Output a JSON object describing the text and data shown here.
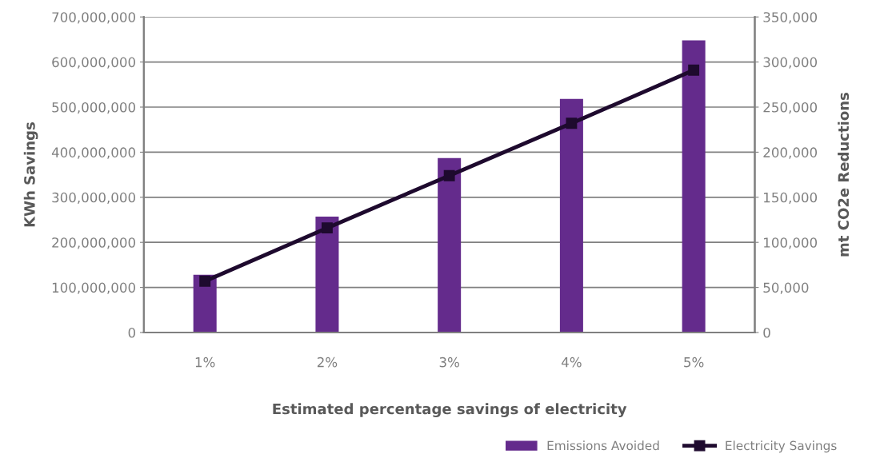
{
  "chart_data": {
    "type": "bar",
    "categories": [
      "1%",
      "2%",
      "3%",
      "4%",
      "5%"
    ],
    "xlabel": "Estimated percentage savings of electricity",
    "ylabel": "KWh Savings",
    "y2label": "mt CO2e Reductions",
    "series": [
      {
        "name": "Emissions Avoided",
        "color": "#642b8c",
        "values": [
          128000000,
          257000000,
          387000000,
          518000000,
          648000000
        ]
      },
      {
        "name": "Electricity Savings",
        "type": "line",
        "axis": "y2",
        "color": "#1e0a2e",
        "marker": "square",
        "values": [
          57000,
          116000,
          174000,
          232000,
          291000
        ]
      }
    ],
    "ylim": [
      0,
      700000000
    ],
    "yticks": [
      {
        "value": 0,
        "label": "0"
      },
      {
        "value": 100000000,
        "label": "100,000,000"
      },
      {
        "value": 200000000,
        "label": "200,000,000"
      },
      {
        "value": 300000000,
        "label": "300,000,000"
      },
      {
        "value": 400000000,
        "label": "400,000,000"
      },
      {
        "value": 500000000,
        "label": "500,000,000"
      },
      {
        "value": 600000000,
        "label": "600,000,000"
      },
      {
        "value": 700000000,
        "label": "700,000,000"
      }
    ],
    "y2lim": [
      0,
      350000
    ],
    "y2ticks": [
      {
        "value": 0,
        "label": "0"
      },
      {
        "value": 50000,
        "label": "50,000"
      },
      {
        "value": 100000,
        "label": "100,000"
      },
      {
        "value": 150000,
        "label": "150,000"
      },
      {
        "value": 200000,
        "label": "200,000"
      },
      {
        "value": 250000,
        "label": "250,000"
      },
      {
        "value": 300000,
        "label": "300,000"
      },
      {
        "value": 350000,
        "label": "350,000"
      }
    ],
    "grid": "y",
    "legend": "bottom right"
  }
}
